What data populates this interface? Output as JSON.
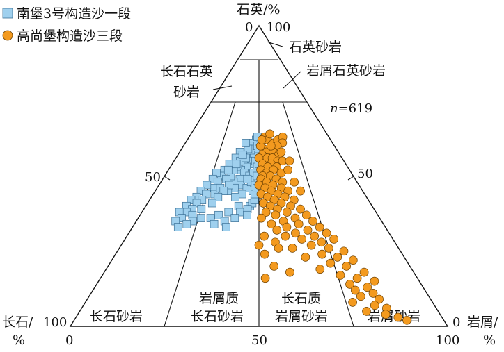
{
  "chart_data": {
    "type": "scatter",
    "subtype": "ternary",
    "legend": {
      "placement": "top-left",
      "items": [
        {
          "name": "南堡3号构造沙一段",
          "marker": "square",
          "color": "#9fd0ee"
        },
        {
          "name": "高尚堡构造沙三段",
          "marker": "circle",
          "color": "#f39a1f"
        }
      ]
    },
    "axes": {
      "top": {
        "label": "石英/%",
        "left_tick": "0",
        "right_tick": "100"
      },
      "left": {
        "label_line1": "长石/",
        "label_line2": "%",
        "corner_tick": "100",
        "bottom_tick": "0",
        "mid_tick": "50"
      },
      "right": {
        "label_line1": "岩屑/",
        "label_line2": "%",
        "corner_tick": "0",
        "bottom_tick": "100",
        "mid_tick": "50"
      },
      "bottom_mid_tick": "50"
    },
    "n_label": {
      "italic": "n",
      "rest": "=619"
    },
    "fields": [
      {
        "id": "quartz_sandstone",
        "text_line1": "石英砂岩"
      },
      {
        "id": "feldspathic_quartz",
        "text_line1": "长石石英",
        "text_line2": "砂岩"
      },
      {
        "id": "lithic_quartz",
        "text_line1": "岩屑石英砂岩"
      },
      {
        "id": "arkose",
        "text_line1": "长石砂岩"
      },
      {
        "id": "lithic_arkose",
        "text_line1": "岩屑质",
        "text_line2": "长石砂岩"
      },
      {
        "id": "feldspathic_litharenite",
        "text_line1": "长石质",
        "text_line2": "岩屑砂岩"
      },
      {
        "id": "litharenite",
        "text_line1": "岩屑砂岩"
      }
    ],
    "series": [
      {
        "name": "南堡3号构造沙一段",
        "points": [
          {
            "q": 62,
            "r": 48
          },
          {
            "q": 61,
            "r": 46
          },
          {
            "q": 60,
            "r": 44
          },
          {
            "q": 58,
            "r": 42
          },
          {
            "q": 59,
            "r": 47
          },
          {
            "q": 57,
            "r": 45
          },
          {
            "q": 60,
            "r": 49
          },
          {
            "q": 56,
            "r": 47
          },
          {
            "q": 55,
            "r": 44
          },
          {
            "q": 55,
            "r": 41
          },
          {
            "q": 54,
            "r": 46
          },
          {
            "q": 53,
            "r": 43
          },
          {
            "q": 52,
            "r": 40
          },
          {
            "q": 53,
            "r": 38
          },
          {
            "q": 51,
            "r": 42
          },
          {
            "q": 50,
            "r": 45
          },
          {
            "q": 49,
            "r": 40
          },
          {
            "q": 48,
            "r": 37
          },
          {
            "q": 50,
            "r": 35
          },
          {
            "q": 52,
            "r": 36
          },
          {
            "q": 47,
            "r": 41
          },
          {
            "q": 46,
            "r": 38
          },
          {
            "q": 45,
            "r": 35
          },
          {
            "q": 46,
            "r": 44
          },
          {
            "q": 44,
            "r": 42
          },
          {
            "q": 43,
            "r": 39
          },
          {
            "q": 48,
            "r": 46
          },
          {
            "q": 57,
            "r": 50
          },
          {
            "q": 55,
            "r": 48
          },
          {
            "q": 53,
            "r": 49
          },
          {
            "q": 51,
            "r": 47
          },
          {
            "q": 49,
            "r": 44
          },
          {
            "q": 47,
            "r": 48
          },
          {
            "q": 45,
            "r": 47
          },
          {
            "q": 58,
            "r": 38
          },
          {
            "q": 56,
            "r": 36
          },
          {
            "q": 54,
            "r": 33
          },
          {
            "q": 52,
            "r": 31
          },
          {
            "q": 50,
            "r": 30
          },
          {
            "q": 51,
            "r": 27
          },
          {
            "q": 49,
            "r": 26
          },
          {
            "q": 48,
            "r": 29
          },
          {
            "q": 46,
            "r": 28
          },
          {
            "q": 47,
            "r": 24
          },
          {
            "q": 45,
            "r": 22
          },
          {
            "q": 44,
            "r": 25
          },
          {
            "q": 43,
            "r": 21
          },
          {
            "q": 42,
            "r": 24
          },
          {
            "q": 44,
            "r": 29
          },
          {
            "q": 46,
            "r": 31
          },
          {
            "q": 42,
            "r": 19
          },
          {
            "q": 40,
            "r": 18
          },
          {
            "q": 41,
            "r": 22
          },
          {
            "q": 39,
            "r": 21
          },
          {
            "q": 38,
            "r": 19
          },
          {
            "q": 38,
            "r": 16
          },
          {
            "q": 36,
            "r": 18
          },
          {
            "q": 35,
            "r": 16
          },
          {
            "q": 37,
            "r": 22
          },
          {
            "q": 39,
            "r": 25
          },
          {
            "q": 35,
            "r": 23
          },
          {
            "q": 36,
            "r": 26
          },
          {
            "q": 34,
            "r": 21
          },
          {
            "q": 33,
            "r": 18
          },
          {
            "q": 36,
            "r": 30
          },
          {
            "q": 37,
            "r": 33
          },
          {
            "q": 34,
            "r": 32
          },
          {
            "q": 35,
            "r": 36
          },
          {
            "q": 38,
            "r": 37
          },
          {
            "q": 40,
            "r": 41
          },
          {
            "q": 38,
            "r": 42
          },
          {
            "q": 36,
            "r": 40
          },
          {
            "q": 40,
            "r": 46
          },
          {
            "q": 41,
            "r": 47
          },
          {
            "q": 39,
            "r": 45
          },
          {
            "q": 33,
            "r": 37
          },
          {
            "q": 37,
            "r": 45
          },
          {
            "q": 42,
            "r": 48
          },
          {
            "q": 44,
            "r": 48
          },
          {
            "q": 46,
            "r": 49
          },
          {
            "q": 54,
            "r": 50
          },
          {
            "q": 59,
            "r": 50
          },
          {
            "q": 63,
            "r": 49
          },
          {
            "q": 50,
            "r": 49
          },
          {
            "q": 52,
            "r": 33
          },
          {
            "q": 49,
            "r": 33
          },
          {
            "q": 47,
            "r": 35
          },
          {
            "q": 45,
            "r": 33
          },
          {
            "q": 43,
            "r": 31
          },
          {
            "q": 41,
            "r": 29
          },
          {
            "q": 55,
            "r": 39
          },
          {
            "q": 56,
            "r": 42
          },
          {
            "q": 59,
            "r": 43
          },
          {
            "q": 61,
            "r": 41
          },
          {
            "q": 57,
            "r": 40
          },
          {
            "q": 54,
            "r": 37
          }
        ]
      },
      {
        "name": "高尚堡构造沙三段",
        "points": [
          {
            "q": 63,
            "r": 54
          },
          {
            "q": 62,
            "r": 56
          },
          {
            "q": 61,
            "r": 60
          },
          {
            "q": 62,
            "r": 63
          },
          {
            "q": 63,
            "r": 67
          },
          {
            "q": 61,
            "r": 66
          },
          {
            "q": 60,
            "r": 62
          },
          {
            "q": 59,
            "r": 57
          },
          {
            "q": 59,
            "r": 53
          },
          {
            "q": 60,
            "r": 51
          },
          {
            "q": 58,
            "r": 55
          },
          {
            "q": 58,
            "r": 59
          },
          {
            "q": 57,
            "r": 62
          },
          {
            "q": 57,
            "r": 52
          },
          {
            "q": 56,
            "r": 50
          },
          {
            "q": 56,
            "r": 55
          },
          {
            "q": 56,
            "r": 58
          },
          {
            "q": 55,
            "r": 61
          },
          {
            "q": 55,
            "r": 64
          },
          {
            "q": 54,
            "r": 52
          },
          {
            "q": 54,
            "r": 57
          },
          {
            "q": 53,
            "r": 55
          },
          {
            "q": 53,
            "r": 60
          },
          {
            "q": 52,
            "r": 51
          },
          {
            "q": 52,
            "r": 58
          },
          {
            "q": 51,
            "r": 54
          },
          {
            "q": 51,
            "r": 62
          },
          {
            "q": 50,
            "r": 52
          },
          {
            "q": 50,
            "r": 56
          },
          {
            "q": 49,
            "r": 59
          },
          {
            "q": 49,
            "r": 51
          },
          {
            "q": 48,
            "r": 54
          },
          {
            "q": 48,
            "r": 62
          },
          {
            "q": 47,
            "r": 57
          },
          {
            "q": 47,
            "r": 50
          },
          {
            "q": 46,
            "r": 53
          },
          {
            "q": 46,
            "r": 61
          },
          {
            "q": 45,
            "r": 56
          },
          {
            "q": 45,
            "r": 64
          },
          {
            "q": 44,
            "r": 51
          },
          {
            "q": 44,
            "r": 59
          },
          {
            "q": 43,
            "r": 54
          },
          {
            "q": 43,
            "r": 62
          },
          {
            "q": 42,
            "r": 57
          },
          {
            "q": 42,
            "r": 66
          },
          {
            "q": 41,
            "r": 52
          },
          {
            "q": 41,
            "r": 60
          },
          {
            "q": 40,
            "r": 55
          },
          {
            "q": 40,
            "r": 64
          },
          {
            "q": 39,
            "r": 58
          },
          {
            "q": 39,
            "r": 68
          },
          {
            "q": 38,
            "r": 53
          },
          {
            "q": 38,
            "r": 62
          },
          {
            "q": 37,
            "r": 57
          },
          {
            "q": 37,
            "r": 70
          },
          {
            "q": 36,
            "r": 51
          },
          {
            "q": 36,
            "r": 65
          },
          {
            "q": 35,
            "r": 60
          },
          {
            "q": 35,
            "r": 72
          },
          {
            "q": 34,
            "r": 55
          },
          {
            "q": 34,
            "r": 66
          },
          {
            "q": 33,
            "r": 61
          },
          {
            "q": 33,
            "r": 74
          },
          {
            "q": 32,
            "r": 57
          },
          {
            "q": 32,
            "r": 69
          },
          {
            "q": 31,
            "r": 64
          },
          {
            "q": 31,
            "r": 76
          },
          {
            "q": 30,
            "r": 60
          },
          {
            "q": 30,
            "r": 71
          },
          {
            "q": 29,
            "r": 66
          },
          {
            "q": 29,
            "r": 78
          },
          {
            "q": 28,
            "r": 56
          },
          {
            "q": 28,
            "r": 73
          },
          {
            "q": 27,
            "r": 69
          },
          {
            "q": 26,
            "r": 62
          },
          {
            "q": 26,
            "r": 75
          },
          {
            "q": 25,
            "r": 80
          },
          {
            "q": 24,
            "r": 72
          },
          {
            "q": 23,
            "r": 66
          },
          {
            "q": 23,
            "r": 77
          },
          {
            "q": 22,
            "r": 82
          },
          {
            "q": 21,
            "r": 74
          },
          {
            "q": 20,
            "r": 79
          },
          {
            "q": 19,
            "r": 70
          },
          {
            "q": 18,
            "r": 84
          },
          {
            "q": 17,
            "r": 76
          },
          {
            "q": 16,
            "r": 81
          },
          {
            "q": 15,
            "r": 86
          },
          {
            "q": 14,
            "r": 78
          },
          {
            "q": 13,
            "r": 83
          },
          {
            "q": 12,
            "r": 79
          },
          {
            "q": 11,
            "r": 84
          },
          {
            "q": 10,
            "r": 80
          },
          {
            "q": 9,
            "r": 85
          },
          {
            "q": 8,
            "r": 77
          },
          {
            "q": 7,
            "r": 83
          },
          {
            "q": 6,
            "r": 86
          },
          {
            "q": 5,
            "r": 80
          },
          {
            "q": 4,
            "r": 85
          },
          {
            "q": 2,
            "r": 90
          },
          {
            "q": 3,
            "r": 88
          },
          {
            "q": 20,
            "r": 55
          },
          {
            "q": 24,
            "r": 52
          },
          {
            "q": 26,
            "r": 57
          },
          {
            "q": 30,
            "r": 52
          },
          {
            "q": 16,
            "r": 52
          },
          {
            "q": 18,
            "r": 60
          },
          {
            "q": 27,
            "r": 50
          },
          {
            "q": 48,
            "r": 68
          },
          {
            "q": 45,
            "r": 70
          },
          {
            "q": 52,
            "r": 66
          },
          {
            "q": 55,
            "r": 68
          },
          {
            "q": 58,
            "r": 64
          },
          {
            "q": 60,
            "r": 58
          },
          {
            "q": 62,
            "r": 52
          },
          {
            "q": 64,
            "r": 58
          }
        ]
      }
    ]
  }
}
